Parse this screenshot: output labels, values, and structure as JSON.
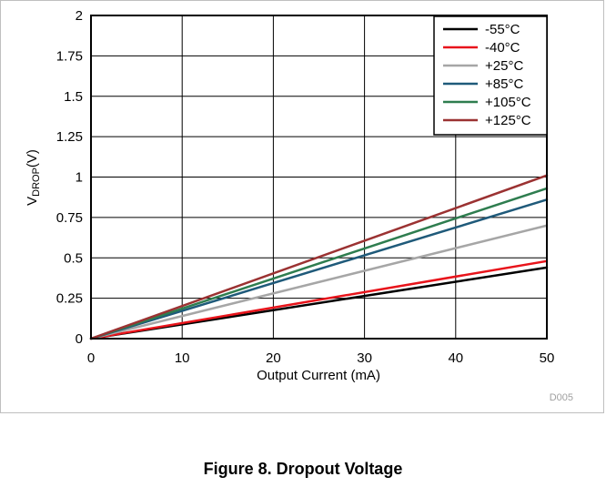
{
  "figure": {
    "caption": "Figure 8. Dropout Voltage",
    "code": "D005"
  },
  "chart_data": {
    "type": "line",
    "title": "",
    "xlabel": "Output Current (mA)",
    "ylabel_main": "V",
    "ylabel_sub": "DROP",
    "ylabel_suffix": "(V)",
    "xlim": [
      0,
      50
    ],
    "ylim": [
      0,
      2
    ],
    "x_ticks": [
      "0",
      "10",
      "20",
      "30",
      "40",
      "50"
    ],
    "y_ticks": [
      "0",
      "0.25",
      "0.5",
      "0.75",
      "1",
      "1.25",
      "1.5",
      "1.75",
      "2"
    ],
    "grid": true,
    "legend_position": "top-right",
    "x": [
      0,
      50
    ],
    "series": [
      {
        "name": "-55°C",
        "color": "#000000",
        "values": [
          0,
          0.44
        ]
      },
      {
        "name": "-40°C",
        "color": "#e8141b",
        "values": [
          0,
          0.48
        ]
      },
      {
        "name": "+25°C",
        "color": "#a6a6a6",
        "values": [
          0,
          0.7
        ]
      },
      {
        "name": "+85°C",
        "color": "#1f5a7a",
        "values": [
          0,
          0.86
        ]
      },
      {
        "name": "+105°C",
        "color": "#2e7d4f",
        "values": [
          0,
          0.93
        ]
      },
      {
        "name": "+125°C",
        "color": "#9b3232",
        "values": [
          0,
          1.01
        ]
      }
    ]
  }
}
